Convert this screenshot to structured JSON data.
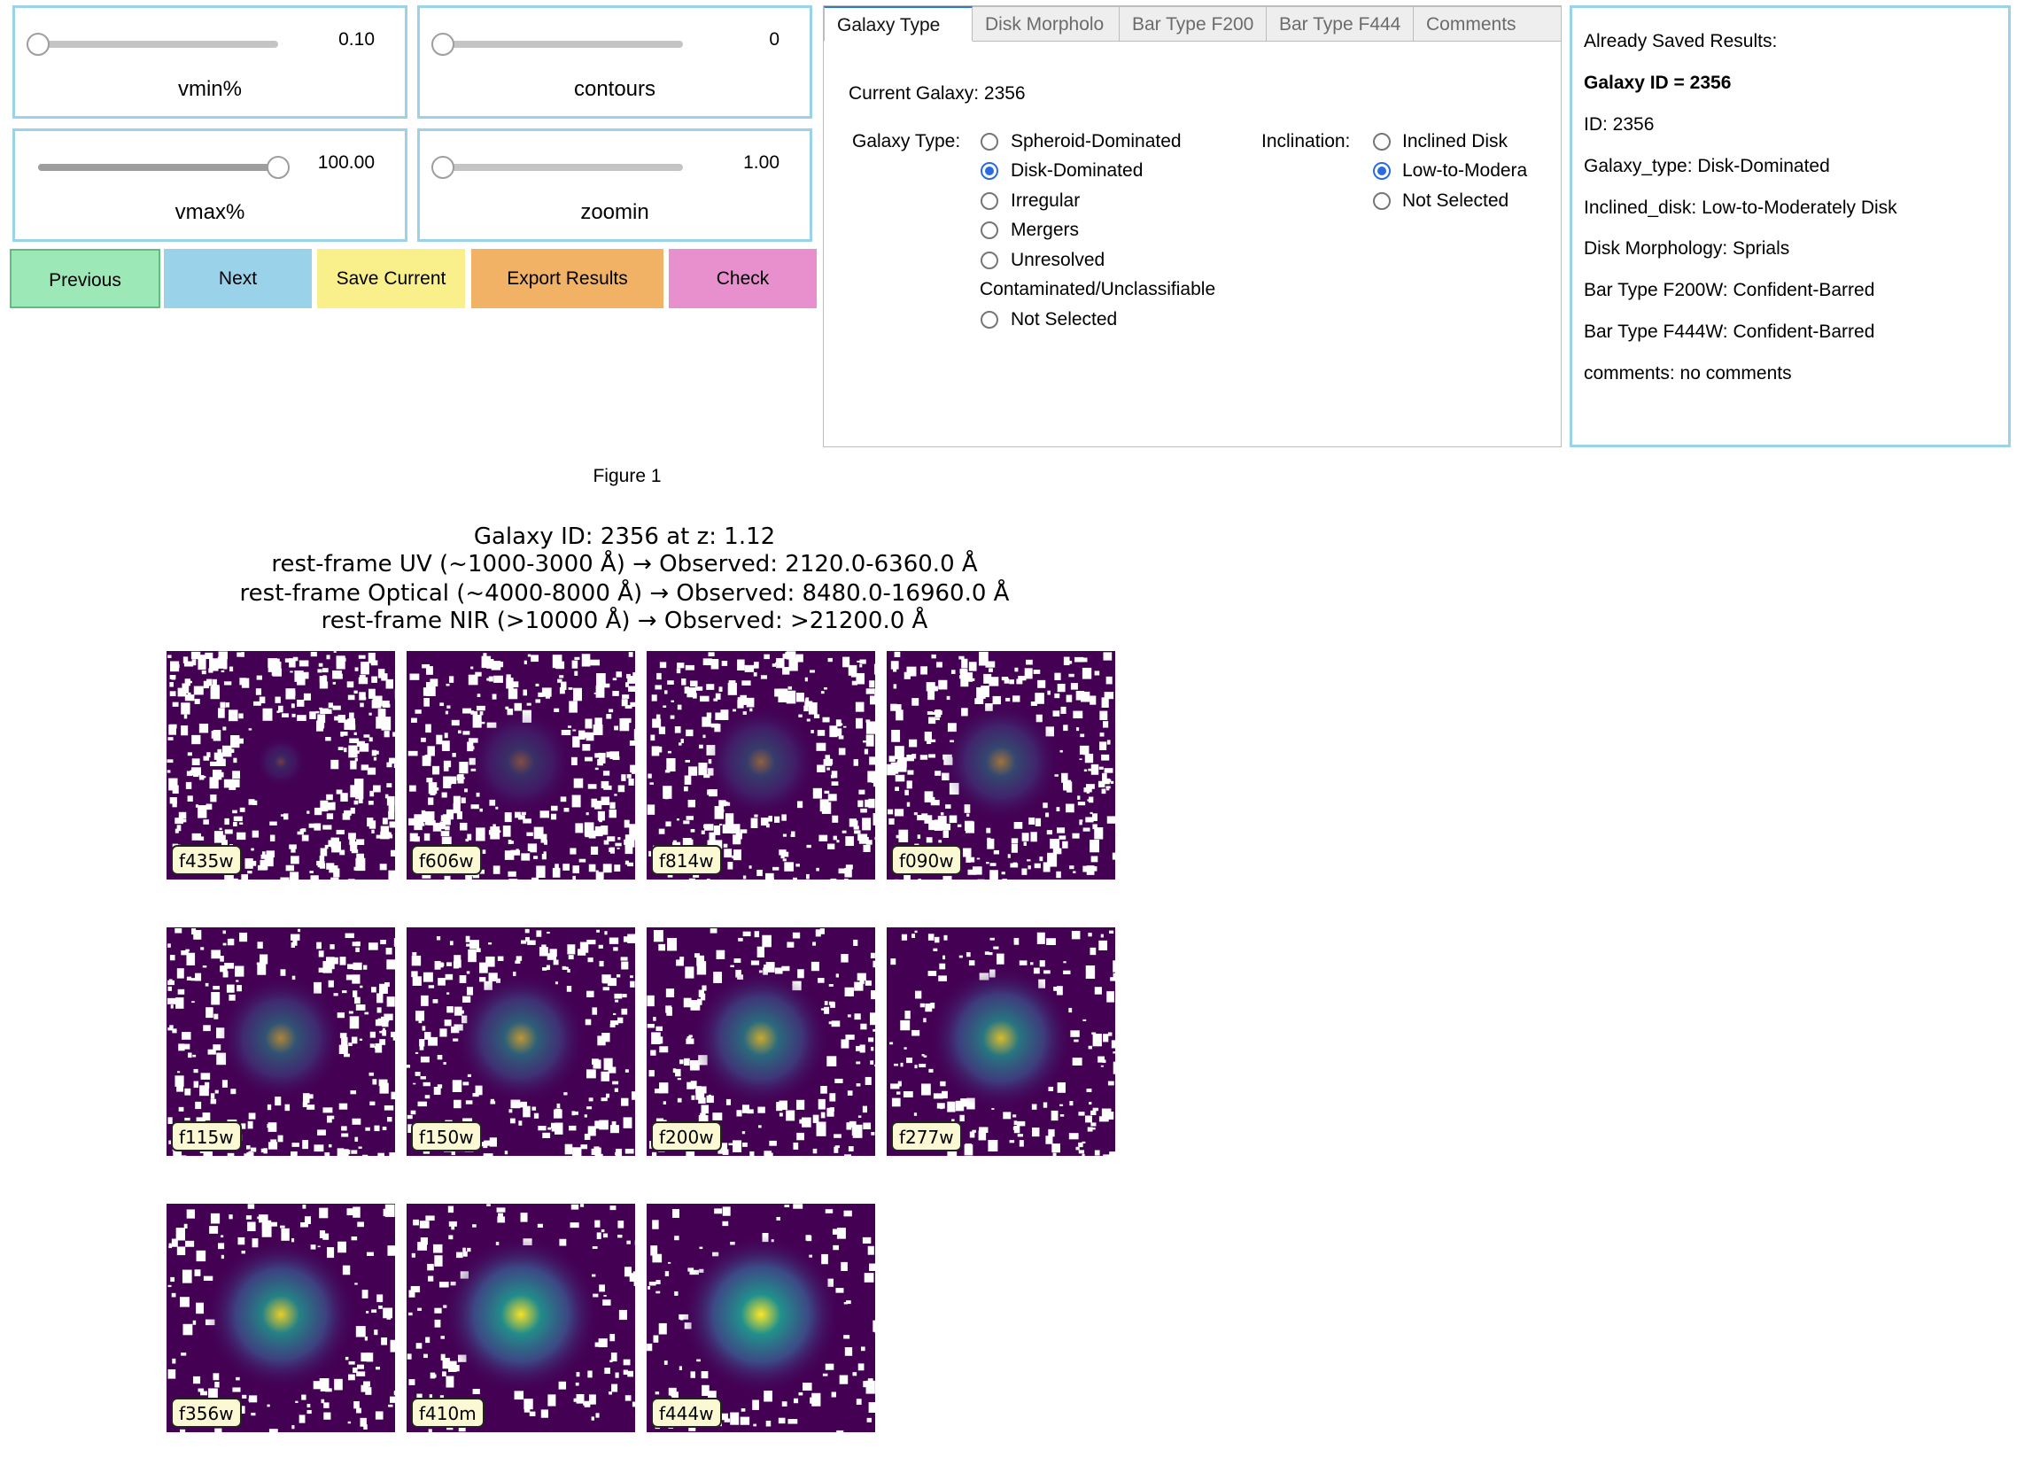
{
  "controls": {
    "vmin": {
      "label": "vmin%",
      "value": "0.10",
      "fraction": 0.0
    },
    "contours": {
      "label": "contours",
      "value": "0",
      "fraction": 0.0
    },
    "vmax": {
      "label": "vmax%",
      "value": "100.00",
      "fraction": 1.0
    },
    "zoomin": {
      "label": "zoomin",
      "value": "1.00",
      "fraction": 0.0
    }
  },
  "buttons": {
    "previous": "Previous",
    "next": "Next",
    "save": "Save Current",
    "export": "Export Results",
    "check": "Check",
    "colors": {
      "previous": "#9de8b7",
      "next": "#9ad2ea",
      "save": "#f9f08c",
      "export": "#f2b266",
      "check": "#e88fce"
    }
  },
  "tabs": {
    "items": [
      "Galaxy Type",
      "Disk Morpholo",
      "Bar Type F200",
      "Bar Type F444",
      "Comments"
    ],
    "active": "Galaxy Type"
  },
  "galaxy_type_panel": {
    "current_galaxy": "Current Galaxy: 2356",
    "galaxy_type_label": "Galaxy Type:",
    "galaxy_type_options": [
      "Spheroid-Dominated",
      "Disk-Dominated",
      "Irregular",
      "Mergers",
      "Unresolved",
      "Contaminated/Unclassifiable",
      "Not Selected"
    ],
    "galaxy_type_selected": "Disk-Dominated",
    "inclination_label": "Inclination:",
    "inclination_options": [
      "Inclined Disk",
      "Low-to-Modera",
      "Not Selected"
    ],
    "inclination_selected": "Low-to-Modera"
  },
  "saved_results": {
    "header": "Already Saved Results:",
    "galaxy_id": "Galaxy ID = 2356",
    "lines": [
      "ID: 2356",
      "Galaxy_type: Disk-Dominated",
      "Inclined_disk: Low-to-Moderately Disk",
      "Disk Morphology: Sprials",
      "Bar Type F200W: Confident-Barred",
      "Bar Type F444W: Confident-Barred",
      "comments: no comments"
    ]
  },
  "figure": {
    "label": "Figure 1",
    "title_lines": [
      "Galaxy ID: 2356 at z: 1.12",
      "rest-frame UV (~1000-3000 Å) → Observed: 2120.0-6360.0 Å",
      "rest-frame Optical (~4000-8000 Å) → Observed: 8480.0-16960.0 Å",
      "rest-frame NIR (>10000 Å) → Observed: >21200.0 Å"
    ],
    "filters": [
      "f435w",
      "f606w",
      "f814w",
      "f090w",
      "f115w",
      "f150w",
      "f200w",
      "f277w",
      "f356w",
      "f410m",
      "f444w"
    ],
    "colormap": "viridis",
    "colors": {
      "background": "#440154",
      "noise": "#ffffff",
      "mid": "#3b528b",
      "core": "#21918c",
      "bright": "#fde725"
    }
  }
}
